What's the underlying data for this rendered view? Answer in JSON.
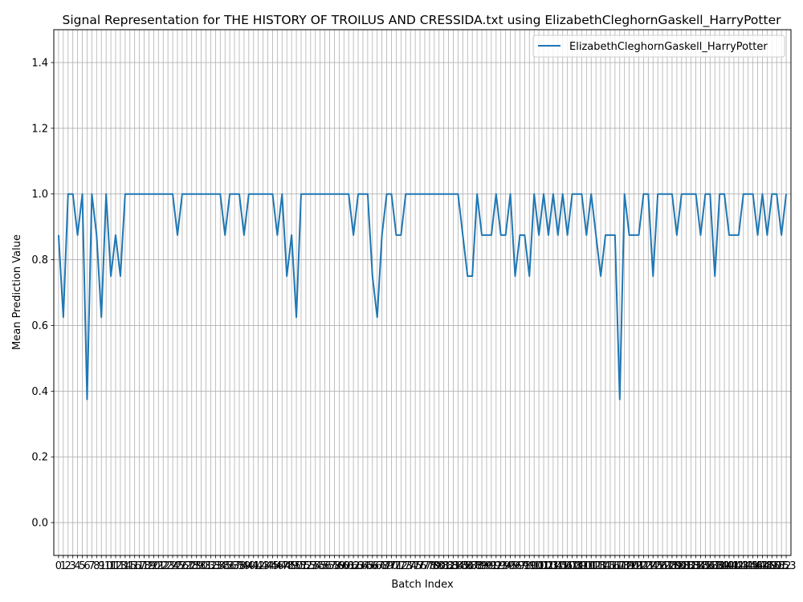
{
  "chart_data": {
    "type": "line",
    "title": "Signal Representation for THE HISTORY OF TROILUS AND CRESSIDA.txt using ElizabethCleghornGaskell_HarryPotter",
    "xlabel": "Batch Index",
    "ylabel": "Mean Prediction Value",
    "xlim": [
      -1,
      154
    ],
    "ylim": [
      -0.1,
      1.5
    ],
    "yticks": [
      0.0,
      0.2,
      0.4,
      0.6,
      0.8,
      1.0,
      1.2,
      1.4
    ],
    "grid": true,
    "legend_position": "upper right",
    "series": [
      {
        "name": "ElizabethCleghornGaskell_HarryPotter",
        "color": "#1f77b4",
        "x": [
          0,
          1,
          2,
          3,
          4,
          5,
          6,
          7,
          8,
          9,
          10,
          11,
          12,
          13,
          14,
          15,
          16,
          17,
          18,
          19,
          20,
          21,
          22,
          23,
          24,
          25,
          26,
          27,
          28,
          29,
          30,
          31,
          32,
          33,
          34,
          35,
          36,
          37,
          38,
          39,
          40,
          41,
          42,
          43,
          44,
          45,
          46,
          47,
          48,
          49,
          50,
          51,
          52,
          53,
          54,
          55,
          56,
          57,
          58,
          59,
          60,
          61,
          62,
          63,
          64,
          65,
          66,
          67,
          68,
          69,
          70,
          71,
          72,
          73,
          74,
          75,
          76,
          77,
          78,
          79,
          80,
          81,
          82,
          83,
          84,
          85,
          86,
          87,
          88,
          89,
          90,
          91,
          92,
          93,
          94,
          95,
          96,
          97,
          98,
          99,
          100,
          101,
          102,
          103,
          104,
          105,
          106,
          107,
          108,
          109,
          110,
          111,
          112,
          113,
          114,
          115,
          116,
          117,
          118,
          119,
          120,
          121,
          122,
          123,
          124,
          125,
          126,
          127,
          128,
          129,
          130,
          131,
          132,
          133,
          134,
          135,
          136,
          137,
          138,
          139,
          140,
          141,
          142,
          143,
          144,
          145,
          146,
          147,
          148,
          149,
          150,
          151,
          152,
          153
        ],
        "y": [
          0.875,
          0.625,
          1.0,
          1.0,
          0.875,
          1.0,
          0.375,
          1.0,
          0.875,
          0.625,
          1.0,
          0.75,
          0.875,
          0.75,
          1.0,
          1.0,
          1.0,
          1.0,
          1.0,
          1.0,
          1.0,
          1.0,
          1.0,
          1.0,
          1.0,
          0.875,
          1.0,
          1.0,
          1.0,
          1.0,
          1.0,
          1.0,
          1.0,
          1.0,
          1.0,
          0.875,
          1.0,
          1.0,
          1.0,
          0.875,
          1.0,
          1.0,
          1.0,
          1.0,
          1.0,
          1.0,
          0.875,
          1.0,
          0.75,
          0.875,
          0.625,
          1.0,
          1.0,
          1.0,
          1.0,
          1.0,
          1.0,
          1.0,
          1.0,
          1.0,
          1.0,
          1.0,
          0.875,
          1.0,
          1.0,
          1.0,
          0.75,
          0.625,
          0.875,
          1.0,
          1.0,
          0.875,
          0.875,
          1.0,
          1.0,
          1.0,
          1.0,
          1.0,
          1.0,
          1.0,
          1.0,
          1.0,
          1.0,
          1.0,
          1.0,
          0.875,
          0.75,
          0.75,
          1.0,
          0.875,
          0.875,
          0.875,
          1.0,
          0.875,
          0.875,
          1.0,
          0.75,
          0.875,
          0.875,
          0.75,
          1.0,
          0.875,
          1.0,
          0.875,
          1.0,
          0.875,
          1.0,
          0.875,
          1.0,
          1.0,
          1.0,
          0.875,
          1.0,
          0.875,
          0.75,
          0.875,
          0.875,
          0.875,
          0.375,
          1.0,
          0.875,
          0.875,
          0.875,
          1.0,
          1.0,
          0.75,
          1.0,
          1.0,
          1.0,
          1.0,
          0.875,
          1.0,
          1.0,
          1.0,
          1.0,
          0.875,
          1.0,
          1.0,
          0.75,
          1.0,
          1.0,
          0.875,
          0.875,
          0.875,
          1.0,
          1.0,
          1.0,
          0.875,
          1.0,
          0.875,
          1.0,
          1.0,
          0.875,
          1.0
        ]
      }
    ]
  }
}
